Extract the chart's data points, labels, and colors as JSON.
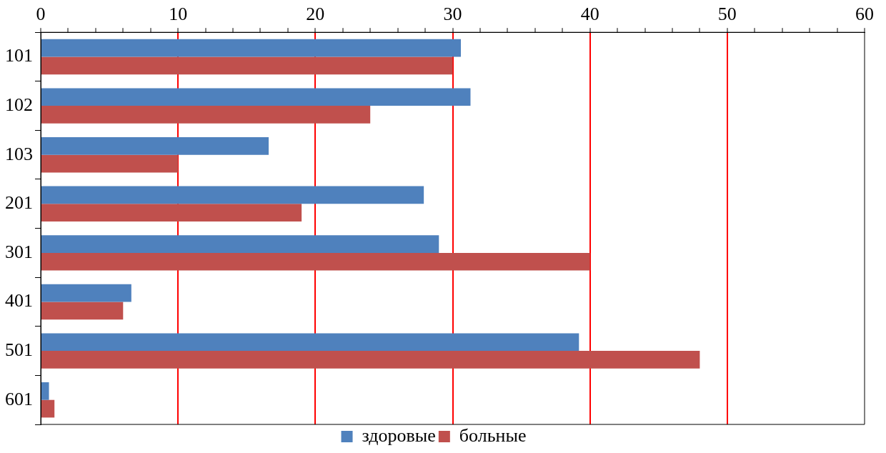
{
  "chart_data": {
    "type": "bar",
    "orientation": "horizontal",
    "categories": [
      "101",
      "102",
      "103",
      "201",
      "301",
      "401",
      "501",
      "601"
    ],
    "series": [
      {
        "name": "здоровые",
        "color": "#4f81bd",
        "values": [
          30.6,
          31.3,
          16.6,
          27.9,
          29.0,
          6.6,
          39.2,
          0.6
        ]
      },
      {
        "name": "больные",
        "color": "#c0504d",
        "values": [
          30.0,
          24.0,
          10.0,
          19.0,
          40.0,
          6.0,
          48.0,
          1.0
        ]
      }
    ],
    "xlim": [
      0,
      60
    ],
    "xticks": [
      0,
      {
        "value": 2,
        "label": null
      },
      {
        "value": 4,
        "label": null
      },
      {
        "value": 6,
        "label": null
      },
      {
        "value": 8,
        "label": null
      },
      10,
      {
        "value": 12,
        "label": null
      },
      {
        "value": 14,
        "label": null
      },
      {
        "value": 16,
        "label": null
      },
      {
        "value": 18,
        "label": null
      },
      20,
      {
        "value": 22,
        "label": null
      },
      {
        "value": 24,
        "label": null
      },
      {
        "value": 26,
        "label": null
      },
      {
        "value": 28,
        "label": null
      },
      30,
      {
        "value": 32,
        "label": null
      },
      {
        "value": 34,
        "label": null
      },
      {
        "value": 36,
        "label": null
      },
      {
        "value": 38,
        "label": null
      },
      40,
      {
        "value": 42,
        "label": null
      },
      {
        "value": 44,
        "label": null
      },
      {
        "value": 46,
        "label": null
      },
      {
        "value": 48,
        "label": null
      },
      50,
      {
        "value": 52,
        "label": null
      },
      {
        "value": 54,
        "label": null
      },
      {
        "value": 56,
        "label": null
      },
      {
        "value": 58,
        "label": null
      },
      60
    ],
    "grid": "x",
    "legend": "bottom"
  }
}
